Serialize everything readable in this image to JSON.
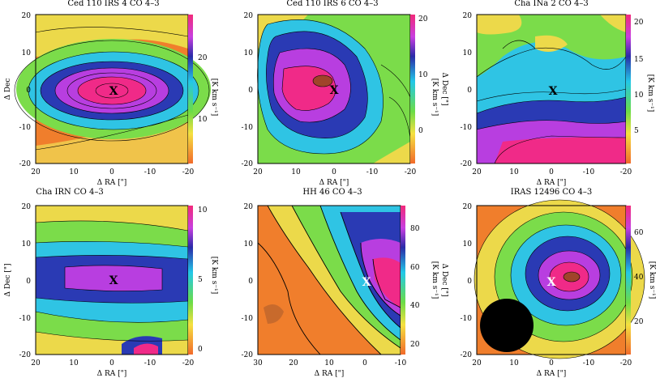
{
  "figure": {
    "panels": [
      {
        "id": "p1",
        "title": "Ced 110 IRS 4 CO 4–3",
        "xlabel": "Δ RA [\"]",
        "ylabel": "Δ Dec",
        "cbar_label": "[K km s⁻¹]",
        "xticks": [
          "20",
          "10",
          "0",
          "-10",
          "-20"
        ],
        "yticks": [
          "20",
          "10",
          "0",
          "-10",
          "-20"
        ],
        "cbar_ticks": [
          "20",
          "10"
        ],
        "marker": "X",
        "marker_color": "black"
      },
      {
        "id": "p2",
        "title": "Ced 110 IRS 6 CO 4–3",
        "xlabel": "Δ RA [\"]",
        "ylabel": "Δ Dec [\"]",
        "cbar_label": "[K km s⁻¹]",
        "xticks": [
          "20",
          "10",
          "0",
          "-10",
          "-20"
        ],
        "yticks": [
          "20",
          "10",
          "0",
          "-10",
          "-20"
        ],
        "cbar_ticks": [
          "20",
          "10",
          "0"
        ],
        "marker": "X",
        "marker_color": "black"
      },
      {
        "id": "p3",
        "title": "Cha INa 2 CO 4–3",
        "xlabel": "Δ RA [\"]",
        "ylabel": "",
        "cbar_label": "[K km s⁻¹]",
        "xticks": [
          "20",
          "10",
          "0",
          "-10",
          "-20"
        ],
        "yticks": [
          "20",
          "10",
          "0",
          "-10",
          "-20"
        ],
        "cbar_ticks": [
          "20",
          "15",
          "10",
          "5"
        ],
        "marker": "X",
        "marker_color": "black"
      },
      {
        "id": "p4",
        "title": "Cha IRN CO 4–3",
        "xlabel": "Δ RA [\"]",
        "ylabel": "Δ Dec [\"]",
        "cbar_label": "[K km s⁻¹]",
        "xticks": [
          "20",
          "10",
          "0",
          "-10",
          "-20"
        ],
        "yticks": [
          "20",
          "10",
          "0",
          "-10",
          "-20"
        ],
        "cbar_ticks": [
          "10",
          "5",
          "0"
        ],
        "marker": "X",
        "marker_color": "black"
      },
      {
        "id": "p5",
        "title": "HH 46 CO 4–3",
        "xlabel": "Δ RA [\"]",
        "ylabel": "Δ Dec [\"]",
        "cbar_label": "[K km s⁻¹]",
        "xticks": [
          "30",
          "20",
          "10",
          "0",
          "-10"
        ],
        "yticks": [
          "20",
          "10",
          "0",
          "-10",
          "-20"
        ],
        "cbar_ticks": [
          "80",
          "60",
          "40",
          "20"
        ],
        "marker": "X",
        "marker_color": "white"
      },
      {
        "id": "p6",
        "title": "IRAS 12496 CO 4–3",
        "xlabel": "Δ RA [\"]",
        "ylabel": "",
        "cbar_label": "[K km s⁻¹]",
        "xticks": [
          "20",
          "10",
          "0",
          "-10",
          "-20"
        ],
        "yticks": [
          "20",
          "10",
          "0",
          "-10",
          "-20"
        ],
        "cbar_ticks": [
          "60",
          "40",
          "20"
        ],
        "marker": "X",
        "marker_color": "white"
      }
    ]
  }
}
